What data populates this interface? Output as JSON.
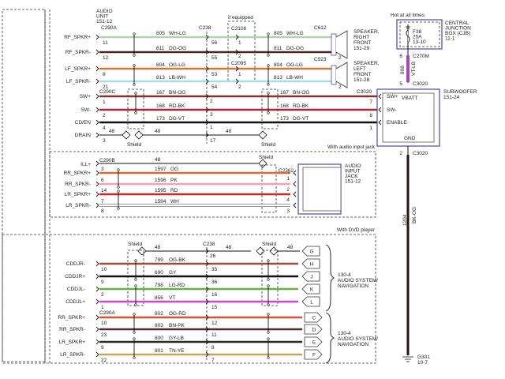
{
  "audio_unit": {
    "lines": [
      "AUDIO",
      "UNIT",
      "151-12"
    ]
  },
  "top": {
    "connector_left": "C290A",
    "connector_left2": "C290C",
    "c238": "C238",
    "if_equipped": "if equipped",
    "c2108": "C2108",
    "c2095": "C2095",
    "c612": "C612",
    "c523": "C523",
    "c3020": "C3020",
    "shield": "Shield",
    "wires": [
      {
        "pin_label": "RF_SPKR+",
        "pin": "11",
        "circuit": "805",
        "color_code": "WH-LG",
        "c238_pin": "56",
        "mid_pin": "1",
        "end_pin": "1",
        "color": "#a9d9a9"
      },
      {
        "pin_label": "RF_SPKR-",
        "pin": "12",
        "circuit": "811",
        "color_code": "DG-OG",
        "c238_pin": "55",
        "mid_pin": "2",
        "end_pin": "2",
        "color": "#4a2820"
      },
      {
        "pin_label": "LF_SPKR+",
        "pin": "8",
        "circuit": "804",
        "color_code": "OG-LG",
        "c238_pin": "53",
        "mid_pin": "1",
        "end_pin": "1",
        "color": "#d0783a"
      },
      {
        "pin_label": "LF_SPKR-",
        "pin": "21",
        "circuit": "813",
        "color_code": "LB-WH",
        "c238_pin": "54",
        "mid_pin": "2",
        "end_pin": "2",
        "color": "#a8dce8"
      },
      {
        "pin_label": "SW+",
        "pin": "1",
        "circuit": "167",
        "color_code": "BN-OG",
        "c238_pin": "2",
        "end_pin": "7",
        "color": "#8a2e2e"
      },
      {
        "pin_label": "SW-",
        "pin": "2",
        "circuit": "168",
        "color_code": "RD-BK",
        "c238_pin": "3",
        "end_pin": "8",
        "color": "#b02626"
      },
      {
        "pin_label": "CD/EN",
        "pin": "4",
        "circuit": "173",
        "color_code": "DG-VT",
        "c238_pin": "1",
        "end_pin": "1",
        "color": "#111111"
      },
      {
        "pin_label": "DRAIN",
        "pin": "3",
        "circuit": "48",
        "c238_pin": "17",
        "circuit2": "48",
        "color": "#111111"
      }
    ],
    "speaker_right": [
      "SPEAKER,",
      "RIGHT",
      "FRONT",
      "151-29"
    ],
    "speaker_left": [
      "SPEAKER,",
      "LEFT",
      "FRONT",
      "151-28"
    ]
  },
  "power": {
    "hot_label": "Hot at all times",
    "cjb": [
      "CENTRAL",
      "JUNCTION",
      "BOX (CJB)",
      "11-1"
    ],
    "fuse": [
      "F38",
      "25A",
      "13-10"
    ],
    "c270m": "C270M",
    "c270m_pin": "6",
    "circuit": "808",
    "color_code": "VT-LB",
    "c3020_pin": "5",
    "c3020": "C3020",
    "wire_color": "#b040c0"
  },
  "subwoofer": {
    "title": [
      "SUBWOOFER",
      "151-24"
    ],
    "pins": [
      "SW+",
      "SW-",
      "ENABLE"
    ],
    "vbatt": "VBATT",
    "gnd": "GND",
    "gnd_pin": "2",
    "gnd_connector": "C3020",
    "gnd_circuit": "1204",
    "gnd_color_code": "BK-OG",
    "ground": [
      "G301",
      "10-7"
    ]
  },
  "input_jack": {
    "section_label": "With audio input jack",
    "connector": "C290B",
    "ill_label": "ILL+",
    "ill_circuit": "48",
    "shield": "Shield",
    "jack_connector": "C2362",
    "wires": [
      {
        "pin_label": "RR_SPKR+",
        "pin": "3",
        "circuit": "1597",
        "color_code": "OG",
        "jack_pin": "1",
        "jack_label": "RR_SPKR+",
        "color": "#e0692a"
      },
      {
        "pin_label": "RR_SPKR-",
        "pin": "6",
        "circuit": "1596",
        "color_code": "PK",
        "jack_pin": "2",
        "jack_label": "RR_SPKR-",
        "color": "#f2a2b2"
      },
      {
        "pin_label": "LR_SPKR+",
        "pin": "14",
        "circuit": "1595",
        "color_code": "RD",
        "jack_pin": "4",
        "jack_label": "LR_SPKR+",
        "color": "#d02828"
      },
      {
        "pin_label": "LR_SPKR-",
        "pin": "7",
        "circuit": "1594",
        "color_code": "WH",
        "jack_pin": "3",
        "jack_label": "LR_SPKR-",
        "color": "#ffffff"
      }
    ],
    "extra_pin": "8",
    "jack_title": [
      "AUDIO",
      "INPUT",
      "JACK",
      "151-12"
    ]
  },
  "dvd": {
    "section_label": "With DVD player",
    "shield": "Shield",
    "c238": "C238",
    "shield_circuit": "48",
    "shield_c238_pin": "26",
    "shield_terminal": "G",
    "connector2": "C290A",
    "wires": [
      {
        "pin_label": "CDDJR-",
        "pin": "10",
        "circuit": "799",
        "color_code": "OG-BK",
        "c238_pin": "35",
        "terminal": "H",
        "color": "#a04a3e"
      },
      {
        "pin_label": "CDDJR+",
        "pin": "9",
        "circuit": "690",
        "color_code": "GY",
        "c238_pin": "36",
        "terminal": "J",
        "color": "#111111"
      },
      {
        "pin_label": "CDDJL-",
        "pin": "2",
        "circuit": "798",
        "color_code": "LG-RD",
        "c238_pin": "16",
        "terminal": "K",
        "color": "#68b040"
      },
      {
        "pin_label": "CDDJL+",
        "pin": "1",
        "circuit": "856",
        "color_code": "VT",
        "c238_pin": "15",
        "terminal": "L",
        "color": "#d83ed8"
      },
      {
        "pin_label": "RR_SPKR+",
        "pin": "10",
        "circuit": "802",
        "color_code": "OG-RD",
        "c238_pin": "12",
        "terminal": "C",
        "color": "#e05030"
      },
      {
        "pin_label": "RR_SPKR-",
        "pin": "23",
        "circuit": "803",
        "color_code": "BN-PK",
        "c238_pin": "11",
        "terminal": "D",
        "color": "#5a2828"
      },
      {
        "pin_label": "LR_SPKR+",
        "pin": "9",
        "circuit": "800",
        "color_code": "GY-LB",
        "c238_pin": "8",
        "terminal": "E",
        "color": "#2a2a2a"
      },
      {
        "pin_label": "LR_SPKR-",
        "pin": "22",
        "circuit": "801",
        "color_code": "TN-YE",
        "c238_pin": "7",
        "terminal": "F",
        "color": "#c8a060"
      }
    ],
    "system_1": [
      "130-4",
      "AUDIO SYSTEM/",
      "NAVIGATION"
    ],
    "system_2": [
      "130-4",
      "AUDIO SYSTEM/",
      "NAVIGATION"
    ]
  }
}
